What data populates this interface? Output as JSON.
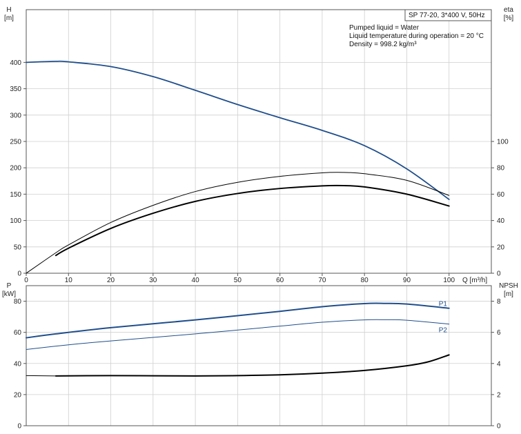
{
  "chart_data": [
    {
      "type": "line",
      "title": "SP 77-20, 3*400 V, 50Hz",
      "notes": [
        "Pumped liquid = Water",
        "Liquid temperature during operation = 20 °C",
        "Density = 998.2 kg/m³"
      ],
      "xlabel": "Q [m³/h]",
      "ylabel_left": [
        "H",
        "[m]"
      ],
      "ylabel_right": [
        "eta",
        "[%]"
      ],
      "xlim": [
        0,
        110
      ],
      "ylim_left": [
        0,
        500
      ],
      "ylim_right": [
        0,
        200
      ],
      "x_ticks": [
        0,
        10,
        20,
        30,
        40,
        50,
        60,
        70,
        80,
        90,
        100
      ],
      "y_ticks_left": [
        0,
        50,
        100,
        150,
        200,
        250,
        300,
        350,
        400
      ],
      "y_ticks_right": [
        0,
        20,
        40,
        60,
        80,
        100
      ],
      "grid": true,
      "series": [
        {
          "axis": "left",
          "color": "#1f4e8c",
          "x": [
            0,
            7,
            10,
            20,
            30,
            40,
            50,
            60,
            70,
            80,
            90,
            100
          ],
          "values": [
            400,
            402,
            401,
            392,
            373,
            347,
            320,
            295,
            271,
            242,
            198,
            140
          ]
        },
        {
          "axis": "right",
          "color": "#000000",
          "width": 1,
          "x": [
            0,
            7,
            10,
            20,
            30,
            40,
            50,
            60,
            70,
            75,
            80,
            90,
            100
          ],
          "values": [
            0,
            15.5,
            21.5,
            38.5,
            51.5,
            62,
            69,
            73.5,
            76.2,
            76.5,
            75.5,
            70.5,
            59
          ]
        },
        {
          "axis": "right",
          "color": "#000000",
          "width": 2,
          "x": [
            7,
            10,
            20,
            30,
            40,
            50,
            60,
            70,
            75,
            80,
            90,
            100
          ],
          "values": [
            13.5,
            19,
            34,
            45.5,
            54.5,
            60.5,
            64.3,
            66.3,
            66.5,
            65.5,
            60,
            51
          ]
        }
      ]
    },
    {
      "type": "line",
      "xlim": [
        0,
        110
      ],
      "ylabel_left": [
        "P",
        "[kW]"
      ],
      "ylabel_right": [
        "NPSH",
        "[m]"
      ],
      "ylim_left": [
        0,
        90
      ],
      "ylim_right": [
        0,
        9
      ],
      "y_ticks_left": [
        0,
        20,
        40,
        60,
        80
      ],
      "y_ticks_right": [
        0,
        2,
        4,
        6,
        8
      ],
      "grid": true,
      "series": [
        {
          "name": "P1",
          "axis": "left",
          "color": "#1f4e8c",
          "width": 2,
          "x": [
            0,
            7,
            20,
            40,
            60,
            70,
            80,
            85,
            90,
            100
          ],
          "values": [
            56.5,
            59,
            63,
            68,
            73.5,
            76.5,
            78.5,
            78.6,
            78.2,
            75.5
          ]
        },
        {
          "name": "P2",
          "axis": "left",
          "color": "#1f4e8c",
          "width": 1,
          "x": [
            0,
            10,
            20,
            40,
            60,
            70,
            80,
            85,
            90,
            100
          ],
          "values": [
            49,
            52,
            54.5,
            59,
            64,
            66.5,
            68,
            68.1,
            67.8,
            65.3
          ]
        },
        {
          "axis": "right",
          "color": "#000000",
          "width": 1,
          "x": [
            0,
            7
          ],
          "values": [
            3.22,
            3.2
          ]
        },
        {
          "axis": "right",
          "color": "#000000",
          "width": 2,
          "x": [
            7,
            20,
            30,
            40,
            50,
            60,
            70,
            80,
            90,
            95,
            100
          ],
          "values": [
            3.2,
            3.22,
            3.21,
            3.2,
            3.22,
            3.27,
            3.38,
            3.55,
            3.85,
            4.1,
            4.55
          ]
        }
      ]
    }
  ]
}
